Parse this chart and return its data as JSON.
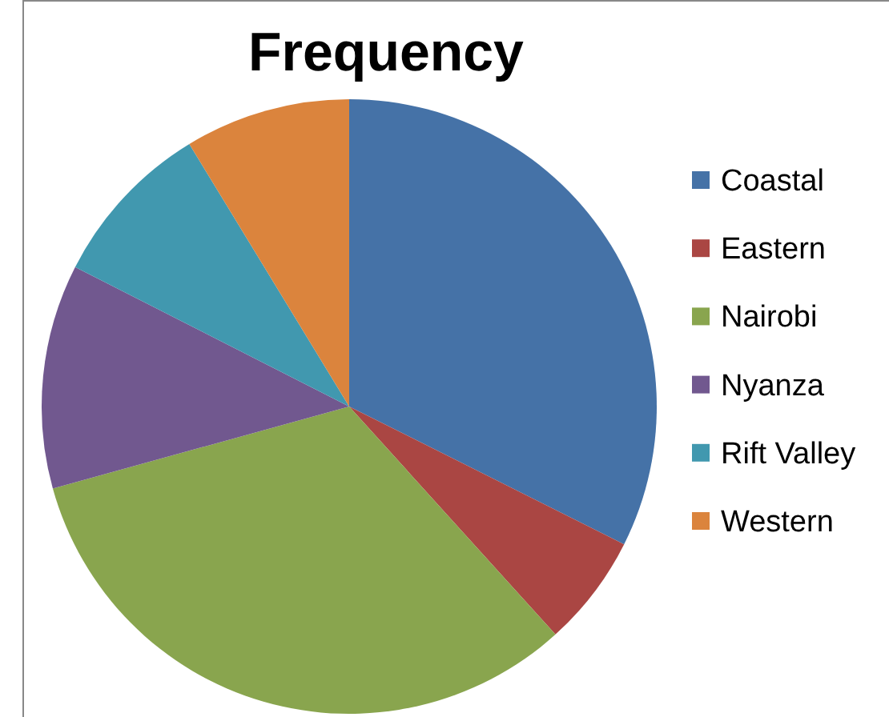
{
  "chart_data": {
    "type": "pie",
    "title": "Frequency",
    "categories": [
      "Coastal",
      "Eastern",
      "Nairobi",
      "Nyanza",
      "Rift Valley",
      "Western"
    ],
    "values": [
      32.4,
      5.9,
      32.4,
      11.8,
      8.8,
      8.7
    ],
    "colors": [
      "#4572a7",
      "#aa4643",
      "#89a54e",
      "#71588f",
      "#4198af",
      "#db843d"
    ],
    "legend": "right"
  }
}
